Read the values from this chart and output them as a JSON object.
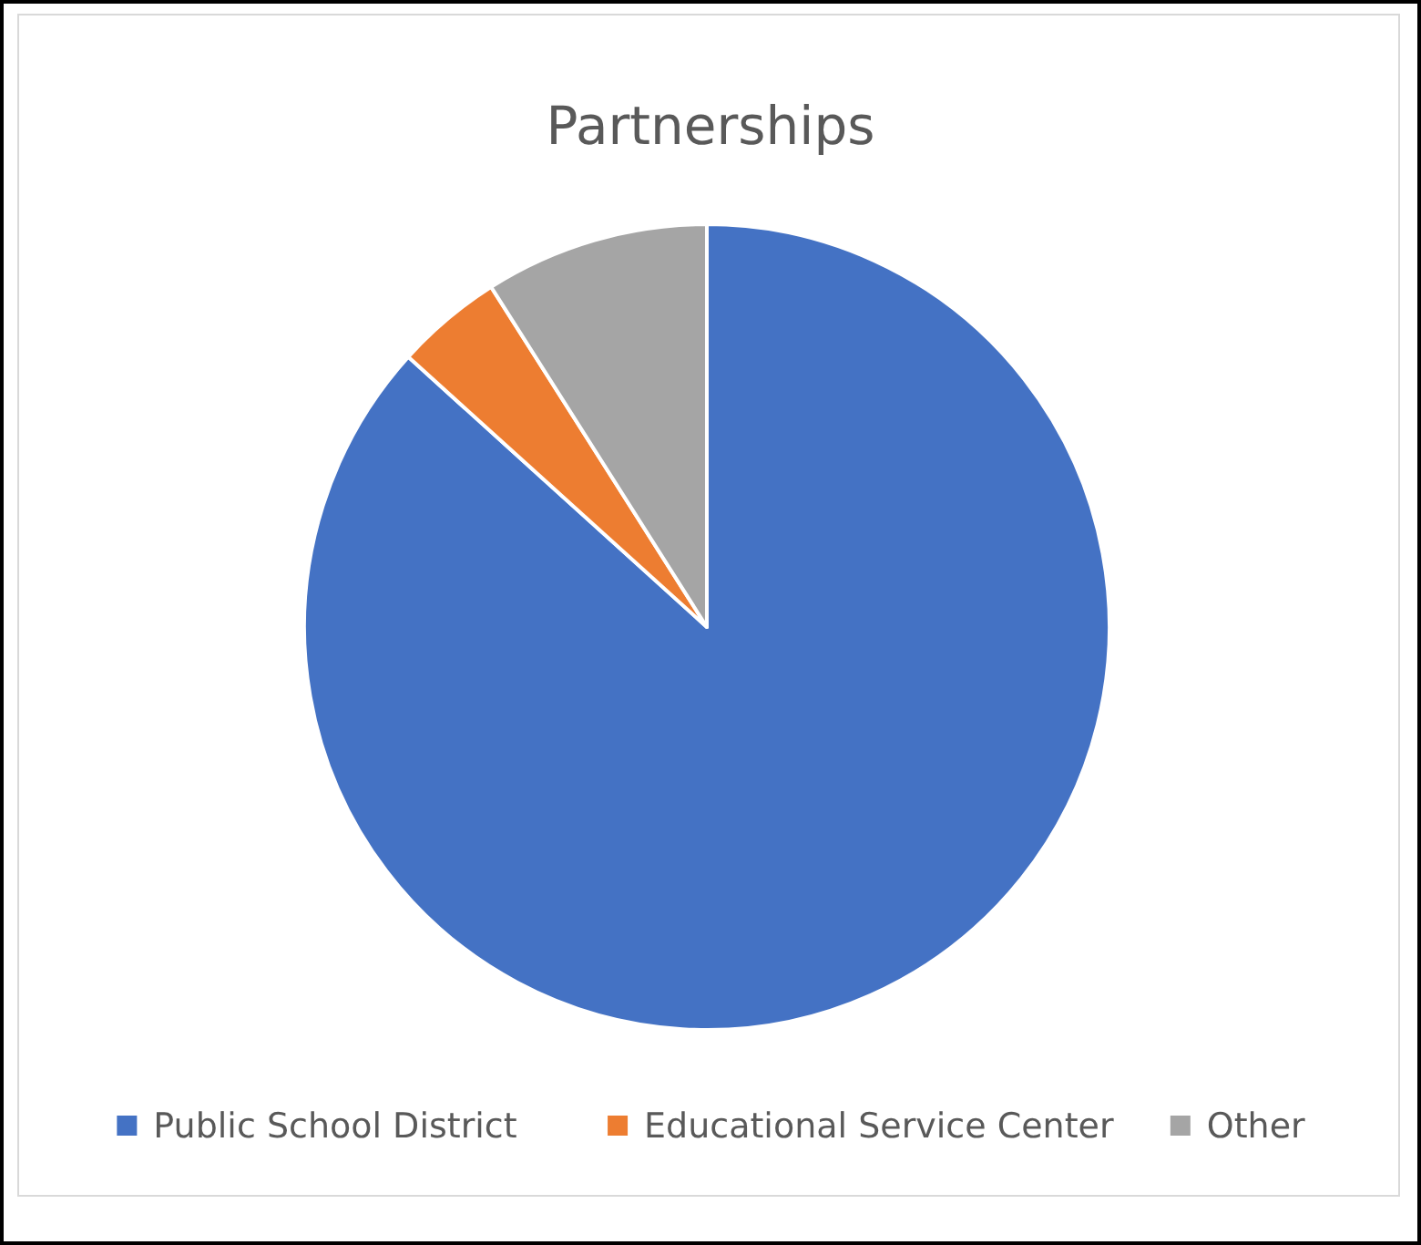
{
  "chart_data": {
    "type": "pie",
    "title": "Partnerships",
    "categories": [
      "Public School District",
      "Educational Service Center",
      "Other"
    ],
    "values": [
      86.7,
      4.3,
      9.0
    ],
    "colors": [
      "#4472c4",
      "#ed7d31",
      "#a5a5a5"
    ],
    "legend": "bottom"
  }
}
